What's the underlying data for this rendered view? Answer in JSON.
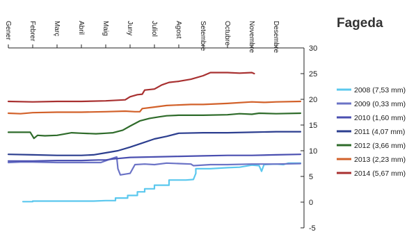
{
  "chart_data": {
    "type": "line",
    "title": "Fageda",
    "x_axis": {
      "position": "top",
      "label_orientation": "vertical",
      "categories": [
        "Gener",
        "Febrer",
        "Març",
        "Abril",
        "Maig",
        "Juny",
        "Juliol",
        "Agost",
        "Setembre",
        "Octubre",
        "Novembre",
        "Desembre"
      ]
    },
    "y_axis": {
      "position": "right",
      "ylim": [
        -5,
        30
      ],
      "ticks": [
        -5,
        0,
        5,
        10,
        15,
        20,
        25,
        30
      ]
    },
    "x_units": "month (0 = start of Gener, 12 = end of Desembre)",
    "grid": false,
    "legend_position": "right",
    "series": [
      {
        "name": "2008 (7,53 mm)",
        "color": "#5BC8EE",
        "points": [
          [
            0.6,
            0.1
          ],
          [
            1.0,
            0.1
          ],
          [
            1.0,
            0.2
          ],
          [
            2.0,
            0.2
          ],
          [
            3.0,
            0.2
          ],
          [
            3.5,
            0.2
          ],
          [
            4.0,
            0.3
          ],
          [
            4.4,
            0.3
          ],
          [
            4.4,
            0.8
          ],
          [
            4.9,
            0.8
          ],
          [
            4.9,
            1.3
          ],
          [
            5.3,
            1.3
          ],
          [
            5.3,
            2.0
          ],
          [
            5.6,
            2.0
          ],
          [
            5.6,
            2.6
          ],
          [
            6.0,
            2.6
          ],
          [
            6.0,
            3.3
          ],
          [
            6.6,
            3.3
          ],
          [
            6.6,
            4.3
          ],
          [
            7.3,
            4.3
          ],
          [
            7.6,
            4.4
          ],
          [
            7.7,
            5.6
          ],
          [
            7.7,
            6.5
          ],
          [
            8.3,
            6.5
          ],
          [
            9.0,
            6.7
          ],
          [
            9.5,
            6.8
          ],
          [
            10.0,
            7.2
          ],
          [
            10.3,
            7.1
          ],
          [
            10.4,
            6.0
          ],
          [
            10.5,
            7.3
          ],
          [
            11.0,
            7.4
          ],
          [
            11.3,
            7.3
          ],
          [
            11.5,
            7.6
          ],
          [
            12.0,
            7.6
          ]
        ]
      },
      {
        "name": "2009 (0,33 mm)",
        "color": "#6B73C6",
        "points": [
          [
            0,
            7.7
          ],
          [
            0.5,
            7.8
          ],
          [
            1.0,
            7.8
          ],
          [
            2.0,
            7.7
          ],
          [
            3.0,
            7.7
          ],
          [
            3.8,
            7.7
          ],
          [
            4.2,
            8.4
          ],
          [
            4.45,
            8.8
          ],
          [
            4.5,
            6.5
          ],
          [
            4.6,
            5.3
          ],
          [
            5.0,
            5.6
          ],
          [
            5.2,
            7.3
          ],
          [
            5.6,
            7.4
          ],
          [
            6.0,
            7.3
          ],
          [
            6.5,
            7.6
          ],
          [
            7.0,
            7.5
          ],
          [
            7.5,
            7.4
          ],
          [
            7.6,
            7.1
          ],
          [
            8.3,
            7.3
          ],
          [
            9.0,
            7.3
          ],
          [
            10.0,
            7.4
          ],
          [
            11.0,
            7.4
          ],
          [
            12.0,
            7.5
          ]
        ]
      },
      {
        "name": "2010 (1,60 mm)",
        "color": "#4A4FB0",
        "points": [
          [
            0,
            8.0
          ],
          [
            1.0,
            8.0
          ],
          [
            2.0,
            8.1
          ],
          [
            3.0,
            8.1
          ],
          [
            3.7,
            8.2
          ],
          [
            4.0,
            8.2
          ],
          [
            4.3,
            8.4
          ],
          [
            5.0,
            8.7
          ],
          [
            6.0,
            8.8
          ],
          [
            7.0,
            8.9
          ],
          [
            8.0,
            9.0
          ],
          [
            9.0,
            9.1
          ],
          [
            10.0,
            9.1
          ],
          [
            11.0,
            9.2
          ],
          [
            12.0,
            9.3
          ]
        ]
      },
      {
        "name": "2011 (4,07 mm)",
        "color": "#2C3E8F",
        "points": [
          [
            0,
            9.3
          ],
          [
            1.0,
            9.2
          ],
          [
            2.0,
            9.1
          ],
          [
            3.0,
            9.1
          ],
          [
            3.5,
            9.2
          ],
          [
            4.0,
            9.6
          ],
          [
            4.5,
            10.0
          ],
          [
            5.0,
            10.7
          ],
          [
            5.5,
            11.5
          ],
          [
            6.0,
            12.3
          ],
          [
            6.5,
            12.8
          ],
          [
            7.0,
            13.4
          ],
          [
            8.0,
            13.5
          ],
          [
            9.0,
            13.5
          ],
          [
            10.0,
            13.6
          ],
          [
            11.0,
            13.7
          ],
          [
            12.0,
            13.7
          ]
        ]
      },
      {
        "name": "2012 (3,66 mm)",
        "color": "#2E6B2A",
        "points": [
          [
            0,
            13.6
          ],
          [
            0.9,
            13.6
          ],
          [
            1.05,
            12.4
          ],
          [
            1.2,
            13.0
          ],
          [
            1.5,
            12.9
          ],
          [
            2.0,
            13.0
          ],
          [
            2.6,
            13.5
          ],
          [
            3.0,
            13.4
          ],
          [
            3.6,
            13.3
          ],
          [
            4.0,
            13.4
          ],
          [
            4.3,
            13.5
          ],
          [
            4.7,
            14.0
          ],
          [
            5.0,
            14.8
          ],
          [
            5.4,
            15.8
          ],
          [
            5.8,
            16.3
          ],
          [
            6.2,
            16.6
          ],
          [
            6.5,
            16.8
          ],
          [
            7.0,
            16.9
          ],
          [
            8.0,
            16.9
          ],
          [
            9.0,
            17.0
          ],
          [
            9.5,
            17.2
          ],
          [
            10.0,
            17.1
          ],
          [
            10.3,
            17.3
          ],
          [
            11.0,
            17.2
          ],
          [
            12.0,
            17.3
          ]
        ]
      },
      {
        "name": "2013 (2,23 mm)",
        "color": "#D2612A",
        "points": [
          [
            0,
            17.3
          ],
          [
            0.5,
            17.2
          ],
          [
            1.0,
            17.4
          ],
          [
            2.0,
            17.5
          ],
          [
            3.0,
            17.5
          ],
          [
            4.0,
            17.6
          ],
          [
            4.8,
            17.7
          ],
          [
            5.2,
            17.6
          ],
          [
            5.4,
            17.6
          ],
          [
            5.5,
            18.2
          ],
          [
            6.0,
            18.5
          ],
          [
            6.5,
            18.8
          ],
          [
            7.0,
            18.9
          ],
          [
            7.5,
            19.0
          ],
          [
            8.0,
            19.0
          ],
          [
            9.0,
            19.2
          ],
          [
            10.0,
            19.5
          ],
          [
            10.5,
            19.4
          ],
          [
            11.0,
            19.5
          ],
          [
            12.0,
            19.6
          ]
        ]
      },
      {
        "name": "2014 (5,67 mm)",
        "color": "#A83030",
        "points": [
          [
            0,
            19.6
          ],
          [
            1.0,
            19.5
          ],
          [
            2.0,
            19.6
          ],
          [
            3.0,
            19.6
          ],
          [
            4.0,
            19.7
          ],
          [
            4.8,
            19.9
          ],
          [
            5.0,
            20.5
          ],
          [
            5.3,
            20.9
          ],
          [
            5.5,
            21.0
          ],
          [
            5.6,
            21.8
          ],
          [
            6.0,
            22.0
          ],
          [
            6.3,
            22.8
          ],
          [
            6.6,
            23.3
          ],
          [
            7.0,
            23.5
          ],
          [
            7.5,
            23.9
          ],
          [
            8.0,
            24.6
          ],
          [
            8.3,
            25.2
          ],
          [
            9.0,
            25.2
          ],
          [
            9.5,
            25.1
          ],
          [
            10.0,
            25.2
          ],
          [
            10.1,
            25.0
          ]
        ]
      }
    ]
  }
}
